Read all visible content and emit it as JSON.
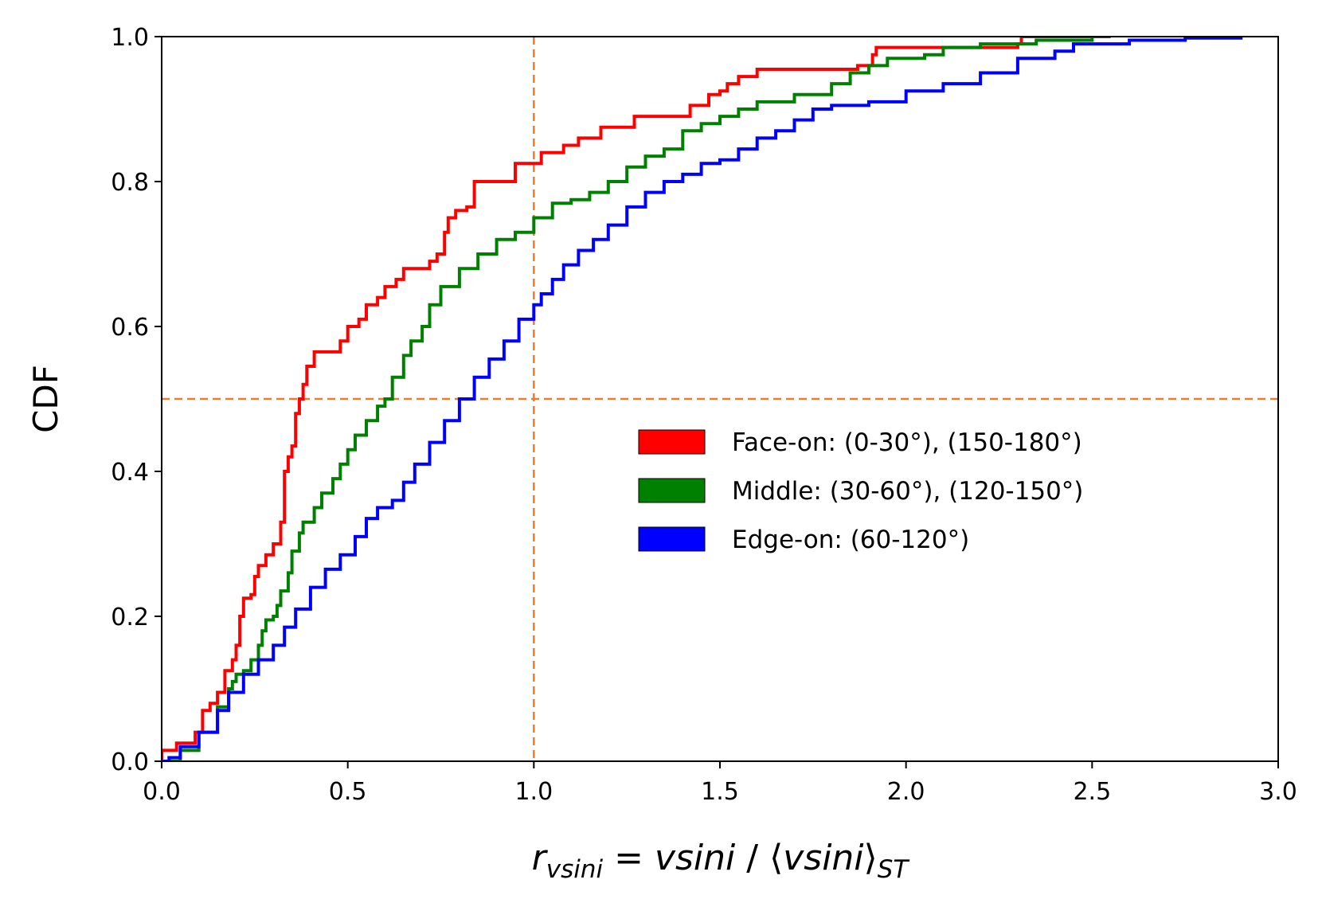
{
  "chart_data": {
    "type": "line",
    "step": true,
    "title": "",
    "ylabel": "CDF",
    "xlabel": {
      "r": "r",
      "r_sub": "vsini",
      "eq": " = ",
      "num": "vsini",
      "sep": " / ",
      "lang": "⟨",
      "den": "vsini",
      "rang": "⟩",
      "den_sub": "ST"
    },
    "xlim": [
      0.0,
      3.0
    ],
    "ylim": [
      0.0,
      1.0
    ],
    "xticks": [
      0.0,
      0.5,
      1.0,
      1.5,
      2.0,
      2.5,
      3.0
    ],
    "xtick_labels": [
      "0.0",
      "0.5",
      "1.0",
      "1.5",
      "2.0",
      "2.5",
      "3.0"
    ],
    "yticks": [
      0.0,
      0.2,
      0.4,
      0.6,
      0.8,
      1.0
    ],
    "ytick_labels": [
      "0.0",
      "0.2",
      "0.4",
      "0.6",
      "0.8",
      "1.0"
    ],
    "grid": false,
    "legend_position": "center-right",
    "reference_lines": [
      {
        "orientation": "vertical",
        "value": 1.0,
        "color": "#f07a2c",
        "style": "dashed"
      },
      {
        "orientation": "horizontal",
        "value": 0.5,
        "color": "#f07a2c",
        "style": "dashed"
      }
    ],
    "series": [
      {
        "name": "Face-on: (0-30°), (150-180°)",
        "color": "#ff0000",
        "points": [
          [
            0.0,
            0.0
          ],
          [
            0.0,
            0.015
          ],
          [
            0.04,
            0.015
          ],
          [
            0.04,
            0.025
          ],
          [
            0.08,
            0.025
          ],
          [
            0.09,
            0.04
          ],
          [
            0.11,
            0.07
          ],
          [
            0.13,
            0.08
          ],
          [
            0.15,
            0.095
          ],
          [
            0.17,
            0.125
          ],
          [
            0.19,
            0.14
          ],
          [
            0.2,
            0.16
          ],
          [
            0.21,
            0.2
          ],
          [
            0.22,
            0.225
          ],
          [
            0.24,
            0.23
          ],
          [
            0.25,
            0.255
          ],
          [
            0.26,
            0.27
          ],
          [
            0.28,
            0.285
          ],
          [
            0.3,
            0.3
          ],
          [
            0.32,
            0.33
          ],
          [
            0.33,
            0.4
          ],
          [
            0.34,
            0.42
          ],
          [
            0.35,
            0.435
          ],
          [
            0.36,
            0.48
          ],
          [
            0.37,
            0.5
          ],
          [
            0.38,
            0.52
          ],
          [
            0.39,
            0.545
          ],
          [
            0.41,
            0.565
          ],
          [
            0.48,
            0.565
          ],
          [
            0.48,
            0.58
          ],
          [
            0.5,
            0.6
          ],
          [
            0.53,
            0.61
          ],
          [
            0.55,
            0.63
          ],
          [
            0.58,
            0.64
          ],
          [
            0.6,
            0.655
          ],
          [
            0.63,
            0.665
          ],
          [
            0.65,
            0.68
          ],
          [
            0.7,
            0.68
          ],
          [
            0.72,
            0.69
          ],
          [
            0.74,
            0.7
          ],
          [
            0.76,
            0.73
          ],
          [
            0.77,
            0.75
          ],
          [
            0.79,
            0.76
          ],
          [
            0.82,
            0.765
          ],
          [
            0.84,
            0.8
          ],
          [
            0.95,
            0.8
          ],
          [
            0.95,
            0.825
          ],
          [
            1.0,
            0.825
          ],
          [
            1.02,
            0.84
          ],
          [
            1.08,
            0.85
          ],
          [
            1.12,
            0.86
          ],
          [
            1.18,
            0.875
          ],
          [
            1.26,
            0.875
          ],
          [
            1.27,
            0.89
          ],
          [
            1.38,
            0.89
          ],
          [
            1.42,
            0.905
          ],
          [
            1.47,
            0.92
          ],
          [
            1.5,
            0.925
          ],
          [
            1.52,
            0.935
          ],
          [
            1.55,
            0.945
          ],
          [
            1.6,
            0.955
          ],
          [
            1.85,
            0.955
          ],
          [
            1.87,
            0.96
          ],
          [
            1.9,
            0.96
          ],
          [
            1.91,
            0.975
          ],
          [
            1.92,
            0.985
          ],
          [
            2.0,
            0.985
          ],
          [
            2.3,
            0.99
          ],
          [
            2.31,
            1.0
          ],
          [
            2.5,
            1.0
          ]
        ]
      },
      {
        "name": "Middle: (30-60°), (120-150°)",
        "color": "#008000",
        "points": [
          [
            0.0,
            0.0
          ],
          [
            0.05,
            0.015
          ],
          [
            0.1,
            0.04
          ],
          [
            0.15,
            0.075
          ],
          [
            0.18,
            0.1
          ],
          [
            0.19,
            0.11
          ],
          [
            0.2,
            0.12
          ],
          [
            0.22,
            0.125
          ],
          [
            0.24,
            0.14
          ],
          [
            0.26,
            0.16
          ],
          [
            0.27,
            0.18
          ],
          [
            0.28,
            0.195
          ],
          [
            0.3,
            0.2
          ],
          [
            0.31,
            0.215
          ],
          [
            0.32,
            0.235
          ],
          [
            0.34,
            0.26
          ],
          [
            0.35,
            0.29
          ],
          [
            0.37,
            0.315
          ],
          [
            0.38,
            0.33
          ],
          [
            0.41,
            0.35
          ],
          [
            0.43,
            0.37
          ],
          [
            0.46,
            0.39
          ],
          [
            0.48,
            0.41
          ],
          [
            0.5,
            0.43
          ],
          [
            0.52,
            0.45
          ],
          [
            0.55,
            0.47
          ],
          [
            0.58,
            0.49
          ],
          [
            0.6,
            0.5
          ],
          [
            0.62,
            0.53
          ],
          [
            0.65,
            0.56
          ],
          [
            0.67,
            0.58
          ],
          [
            0.7,
            0.6
          ],
          [
            0.72,
            0.63
          ],
          [
            0.75,
            0.655
          ],
          [
            0.8,
            0.68
          ],
          [
            0.85,
            0.7
          ],
          [
            0.9,
            0.72
          ],
          [
            0.95,
            0.73
          ],
          [
            1.0,
            0.75
          ],
          [
            1.05,
            0.77
          ],
          [
            1.1,
            0.775
          ],
          [
            1.15,
            0.785
          ],
          [
            1.2,
            0.8
          ],
          [
            1.25,
            0.82
          ],
          [
            1.3,
            0.835
          ],
          [
            1.35,
            0.845
          ],
          [
            1.4,
            0.87
          ],
          [
            1.45,
            0.88
          ],
          [
            1.5,
            0.89
          ],
          [
            1.55,
            0.9
          ],
          [
            1.6,
            0.91
          ],
          [
            1.7,
            0.92
          ],
          [
            1.8,
            0.935
          ],
          [
            1.85,
            0.95
          ],
          [
            1.9,
            0.96
          ],
          [
            1.95,
            0.97
          ],
          [
            2.05,
            0.975
          ],
          [
            2.1,
            0.985
          ],
          [
            2.2,
            0.99
          ],
          [
            2.35,
            0.995
          ],
          [
            2.5,
            1.0
          ],
          [
            2.55,
            1.0
          ]
        ]
      },
      {
        "name": "Edge-on: (60-120°)",
        "color": "#0000ff",
        "points": [
          [
            0.0,
            0.0
          ],
          [
            0.02,
            0.005
          ],
          [
            0.05,
            0.02
          ],
          [
            0.1,
            0.04
          ],
          [
            0.15,
            0.07
          ],
          [
            0.18,
            0.095
          ],
          [
            0.22,
            0.12
          ],
          [
            0.26,
            0.14
          ],
          [
            0.3,
            0.16
          ],
          [
            0.33,
            0.185
          ],
          [
            0.36,
            0.21
          ],
          [
            0.4,
            0.24
          ],
          [
            0.44,
            0.265
          ],
          [
            0.48,
            0.285
          ],
          [
            0.52,
            0.31
          ],
          [
            0.55,
            0.335
          ],
          [
            0.58,
            0.35
          ],
          [
            0.62,
            0.36
          ],
          [
            0.65,
            0.385
          ],
          [
            0.68,
            0.41
          ],
          [
            0.72,
            0.44
          ],
          [
            0.76,
            0.47
          ],
          [
            0.8,
            0.5
          ],
          [
            0.84,
            0.53
          ],
          [
            0.88,
            0.555
          ],
          [
            0.92,
            0.58
          ],
          [
            0.96,
            0.61
          ],
          [
            1.0,
            0.63
          ],
          [
            1.02,
            0.645
          ],
          [
            1.05,
            0.665
          ],
          [
            1.08,
            0.685
          ],
          [
            1.12,
            0.705
          ],
          [
            1.16,
            0.72
          ],
          [
            1.2,
            0.74
          ],
          [
            1.25,
            0.765
          ],
          [
            1.3,
            0.785
          ],
          [
            1.35,
            0.8
          ],
          [
            1.4,
            0.81
          ],
          [
            1.45,
            0.825
          ],
          [
            1.5,
            0.83
          ],
          [
            1.55,
            0.845
          ],
          [
            1.6,
            0.86
          ],
          [
            1.65,
            0.87
          ],
          [
            1.7,
            0.885
          ],
          [
            1.75,
            0.9
          ],
          [
            1.8,
            0.905
          ],
          [
            1.9,
            0.91
          ],
          [
            2.0,
            0.925
          ],
          [
            2.1,
            0.935
          ],
          [
            2.2,
            0.95
          ],
          [
            2.3,
            0.97
          ],
          [
            2.4,
            0.98
          ],
          [
            2.45,
            0.99
          ],
          [
            2.6,
            0.995
          ],
          [
            2.75,
            0.998
          ],
          [
            2.9,
            1.0
          ]
        ]
      }
    ]
  }
}
